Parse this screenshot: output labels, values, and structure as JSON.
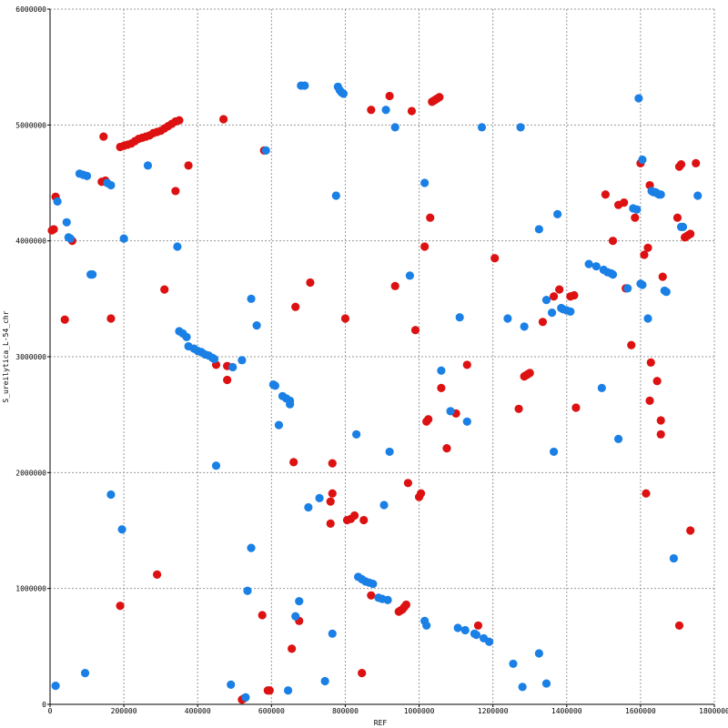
{
  "chart_data": {
    "type": "scatter",
    "title": "",
    "xlabel": "REF",
    "ylabel": "S_ureilytica_L-54_chr",
    "xlim": [
      0,
      1800000
    ],
    "ylim": [
      0,
      6000000
    ],
    "grid": true,
    "x_ticks": [
      0,
      200000,
      400000,
      600000,
      800000,
      1000000,
      1200000,
      1400000,
      1600000,
      1800000
    ],
    "y_ticks": [
      0,
      1000000,
      2000000,
      3000000,
      4000000,
      5000000,
      6000000
    ],
    "series": [
      {
        "color": "#dd1111",
        "points": [
          [
            5000,
            4090000
          ],
          [
            10000,
            4100000
          ],
          [
            15000,
            4380000
          ],
          [
            40000,
            3320000
          ],
          [
            60000,
            4000000
          ],
          [
            140000,
            4510000
          ],
          [
            145000,
            4900000
          ],
          [
            150000,
            4520000
          ],
          [
            165000,
            3330000
          ],
          [
            190000,
            850000
          ],
          [
            190000,
            4810000
          ],
          [
            200000,
            4820000
          ],
          [
            210000,
            4830000
          ],
          [
            220000,
            4840000
          ],
          [
            230000,
            4860000
          ],
          [
            240000,
            4880000
          ],
          [
            250000,
            4890000
          ],
          [
            260000,
            4900000
          ],
          [
            270000,
            4910000
          ],
          [
            280000,
            4930000
          ],
          [
            290000,
            4940000
          ],
          [
            300000,
            4950000
          ],
          [
            310000,
            4970000
          ],
          [
            320000,
            4990000
          ],
          [
            330000,
            5010000
          ],
          [
            340000,
            5030000
          ],
          [
            350000,
            5040000
          ],
          [
            290000,
            1120000
          ],
          [
            310000,
            3580000
          ],
          [
            340000,
            4430000
          ],
          [
            375000,
            4650000
          ],
          [
            450000,
            2930000
          ],
          [
            470000,
            5050000
          ],
          [
            480000,
            2920000
          ],
          [
            480000,
            2800000
          ],
          [
            520000,
            40000
          ],
          [
            525000,
            50000
          ],
          [
            575000,
            770000
          ],
          [
            580000,
            4780000
          ],
          [
            590000,
            120000
          ],
          [
            595000,
            120000
          ],
          [
            655000,
            480000
          ],
          [
            665000,
            3430000
          ],
          [
            660000,
            2090000
          ],
          [
            675000,
            720000
          ],
          [
            705000,
            3640000
          ],
          [
            760000,
            1560000
          ],
          [
            760000,
            1750000
          ],
          [
            765000,
            2080000
          ],
          [
            765000,
            1820000
          ],
          [
            800000,
            3330000
          ],
          [
            805000,
            1590000
          ],
          [
            815000,
            1600000
          ],
          [
            825000,
            1630000
          ],
          [
            845000,
            270000
          ],
          [
            850000,
            1590000
          ],
          [
            870000,
            5130000
          ],
          [
            870000,
            940000
          ],
          [
            920000,
            5250000
          ],
          [
            935000,
            3610000
          ],
          [
            945000,
            800000
          ],
          [
            950000,
            810000
          ],
          [
            955000,
            820000
          ],
          [
            960000,
            840000
          ],
          [
            965000,
            860000
          ],
          [
            970000,
            1910000
          ],
          [
            980000,
            5120000
          ],
          [
            990000,
            3230000
          ],
          [
            1000000,
            1790000
          ],
          [
            1005000,
            1820000
          ],
          [
            1015000,
            3950000
          ],
          [
            1020000,
            2440000
          ],
          [
            1025000,
            2460000
          ],
          [
            1030000,
            4200000
          ],
          [
            1035000,
            5200000
          ],
          [
            1040000,
            5210000
          ],
          [
            1045000,
            5220000
          ],
          [
            1050000,
            5230000
          ],
          [
            1055000,
            5240000
          ],
          [
            1060000,
            2730000
          ],
          [
            1075000,
            2210000
          ],
          [
            1100000,
            2510000
          ],
          [
            1130000,
            2930000
          ],
          [
            1160000,
            680000
          ],
          [
            1205000,
            3850000
          ],
          [
            1270000,
            2550000
          ],
          [
            1285000,
            2830000
          ],
          [
            1290000,
            2840000
          ],
          [
            1295000,
            2850000
          ],
          [
            1300000,
            2860000
          ],
          [
            1335000,
            3300000
          ],
          [
            1365000,
            3520000
          ],
          [
            1380000,
            3580000
          ],
          [
            1410000,
            3520000
          ],
          [
            1420000,
            3530000
          ],
          [
            1425000,
            2560000
          ],
          [
            1505000,
            4400000
          ],
          [
            1525000,
            4000000
          ],
          [
            1540000,
            4310000
          ],
          [
            1555000,
            4330000
          ],
          [
            1560000,
            3590000
          ],
          [
            1575000,
            3100000
          ],
          [
            1585000,
            4200000
          ],
          [
            1600000,
            4670000
          ],
          [
            1610000,
            3880000
          ],
          [
            1615000,
            1820000
          ],
          [
            1620000,
            3940000
          ],
          [
            1625000,
            4480000
          ],
          [
            1625000,
            2620000
          ],
          [
            1628000,
            2950000
          ],
          [
            1645000,
            2790000
          ],
          [
            1655000,
            2450000
          ],
          [
            1655000,
            2330000
          ],
          [
            1660000,
            3690000
          ],
          [
            1700000,
            4200000
          ],
          [
            1705000,
            4640000
          ],
          [
            1705000,
            680000
          ],
          [
            1710000,
            4660000
          ],
          [
            1720000,
            4030000
          ],
          [
            1725000,
            4040000
          ],
          [
            1730000,
            4050000
          ],
          [
            1735000,
            4060000
          ],
          [
            1735000,
            1500000
          ],
          [
            1750000,
            4670000
          ]
        ]
      },
      {
        "color": "#1a80e6",
        "points": [
          [
            15000,
            160000
          ],
          [
            20000,
            4340000
          ],
          [
            45000,
            4160000
          ],
          [
            50000,
            4030000
          ],
          [
            55000,
            4020000
          ],
          [
            80000,
            4580000
          ],
          [
            90000,
            4570000
          ],
          [
            100000,
            4560000
          ],
          [
            95000,
            270000
          ],
          [
            110000,
            3710000
          ],
          [
            115000,
            3710000
          ],
          [
            155000,
            4500000
          ],
          [
            165000,
            4480000
          ],
          [
            165000,
            1810000
          ],
          [
            195000,
            1510000
          ],
          [
            200000,
            4020000
          ],
          [
            265000,
            4650000
          ],
          [
            345000,
            3950000
          ],
          [
            350000,
            3220000
          ],
          [
            360000,
            3200000
          ],
          [
            370000,
            3170000
          ],
          [
            375000,
            3090000
          ],
          [
            390000,
            3070000
          ],
          [
            400000,
            3050000
          ],
          [
            410000,
            3040000
          ],
          [
            420000,
            3020000
          ],
          [
            430000,
            3010000
          ],
          [
            440000,
            2990000
          ],
          [
            445000,
            2980000
          ],
          [
            450000,
            2060000
          ],
          [
            490000,
            170000
          ],
          [
            495000,
            2910000
          ],
          [
            520000,
            2970000
          ],
          [
            530000,
            60000
          ],
          [
            535000,
            980000
          ],
          [
            545000,
            1350000
          ],
          [
            545000,
            3500000
          ],
          [
            560000,
            3270000
          ],
          [
            585000,
            4780000
          ],
          [
            605000,
            2760000
          ],
          [
            610000,
            2750000
          ],
          [
            620000,
            2410000
          ],
          [
            630000,
            2660000
          ],
          [
            640000,
            2640000
          ],
          [
            650000,
            2620000
          ],
          [
            650000,
            2590000
          ],
          [
            645000,
            120000
          ],
          [
            665000,
            760000
          ],
          [
            675000,
            890000
          ],
          [
            680000,
            5340000
          ],
          [
            690000,
            5340000
          ],
          [
            700000,
            1700000
          ],
          [
            730000,
            1780000
          ],
          [
            745000,
            200000
          ],
          [
            765000,
            610000
          ],
          [
            775000,
            4390000
          ],
          [
            780000,
            5330000
          ],
          [
            785000,
            5300000
          ],
          [
            790000,
            5280000
          ],
          [
            795000,
            5270000
          ],
          [
            830000,
            2330000
          ],
          [
            835000,
            1100000
          ],
          [
            845000,
            1080000
          ],
          [
            855000,
            1060000
          ],
          [
            865000,
            1050000
          ],
          [
            875000,
            1040000
          ],
          [
            890000,
            920000
          ],
          [
            900000,
            910000
          ],
          [
            905000,
            1720000
          ],
          [
            910000,
            5130000
          ],
          [
            915000,
            900000
          ],
          [
            920000,
            2180000
          ],
          [
            935000,
            4980000
          ],
          [
            975000,
            3700000
          ],
          [
            1015000,
            4500000
          ],
          [
            1015000,
            720000
          ],
          [
            1020000,
            680000
          ],
          [
            1060000,
            2880000
          ],
          [
            1085000,
            2530000
          ],
          [
            1110000,
            3340000
          ],
          [
            1105000,
            660000
          ],
          [
            1125000,
            640000
          ],
          [
            1130000,
            2440000
          ],
          [
            1150000,
            610000
          ],
          [
            1155000,
            600000
          ],
          [
            1170000,
            4980000
          ],
          [
            1175000,
            570000
          ],
          [
            1190000,
            540000
          ],
          [
            1240000,
            3330000
          ],
          [
            1255000,
            350000
          ],
          [
            1275000,
            4980000
          ],
          [
            1280000,
            150000
          ],
          [
            1285000,
            3260000
          ],
          [
            1325000,
            440000
          ],
          [
            1325000,
            4100000
          ],
          [
            1345000,
            3490000
          ],
          [
            1345000,
            180000
          ],
          [
            1360000,
            3380000
          ],
          [
            1365000,
            2180000
          ],
          [
            1375000,
            4230000
          ],
          [
            1385000,
            3420000
          ],
          [
            1390000,
            3410000
          ],
          [
            1400000,
            3400000
          ],
          [
            1410000,
            3390000
          ],
          [
            1460000,
            3800000
          ],
          [
            1480000,
            3780000
          ],
          [
            1495000,
            2730000
          ],
          [
            1500000,
            3750000
          ],
          [
            1510000,
            3730000
          ],
          [
            1520000,
            3720000
          ],
          [
            1525000,
            3710000
          ],
          [
            1540000,
            2290000
          ],
          [
            1565000,
            3590000
          ],
          [
            1580000,
            4280000
          ],
          [
            1590000,
            4270000
          ],
          [
            1595000,
            5230000
          ],
          [
            1600000,
            3630000
          ],
          [
            1605000,
            3620000
          ],
          [
            1605000,
            4700000
          ],
          [
            1620000,
            3330000
          ],
          [
            1630000,
            4430000
          ],
          [
            1635000,
            4420000
          ],
          [
            1640000,
            4420000
          ],
          [
            1645000,
            4410000
          ],
          [
            1650000,
            4400000
          ],
          [
            1655000,
            4400000
          ],
          [
            1665000,
            3570000
          ],
          [
            1670000,
            3560000
          ],
          [
            1690000,
            1260000
          ],
          [
            1710000,
            4120000
          ],
          [
            1715000,
            4120000
          ],
          [
            1755000,
            4390000
          ]
        ]
      }
    ]
  }
}
